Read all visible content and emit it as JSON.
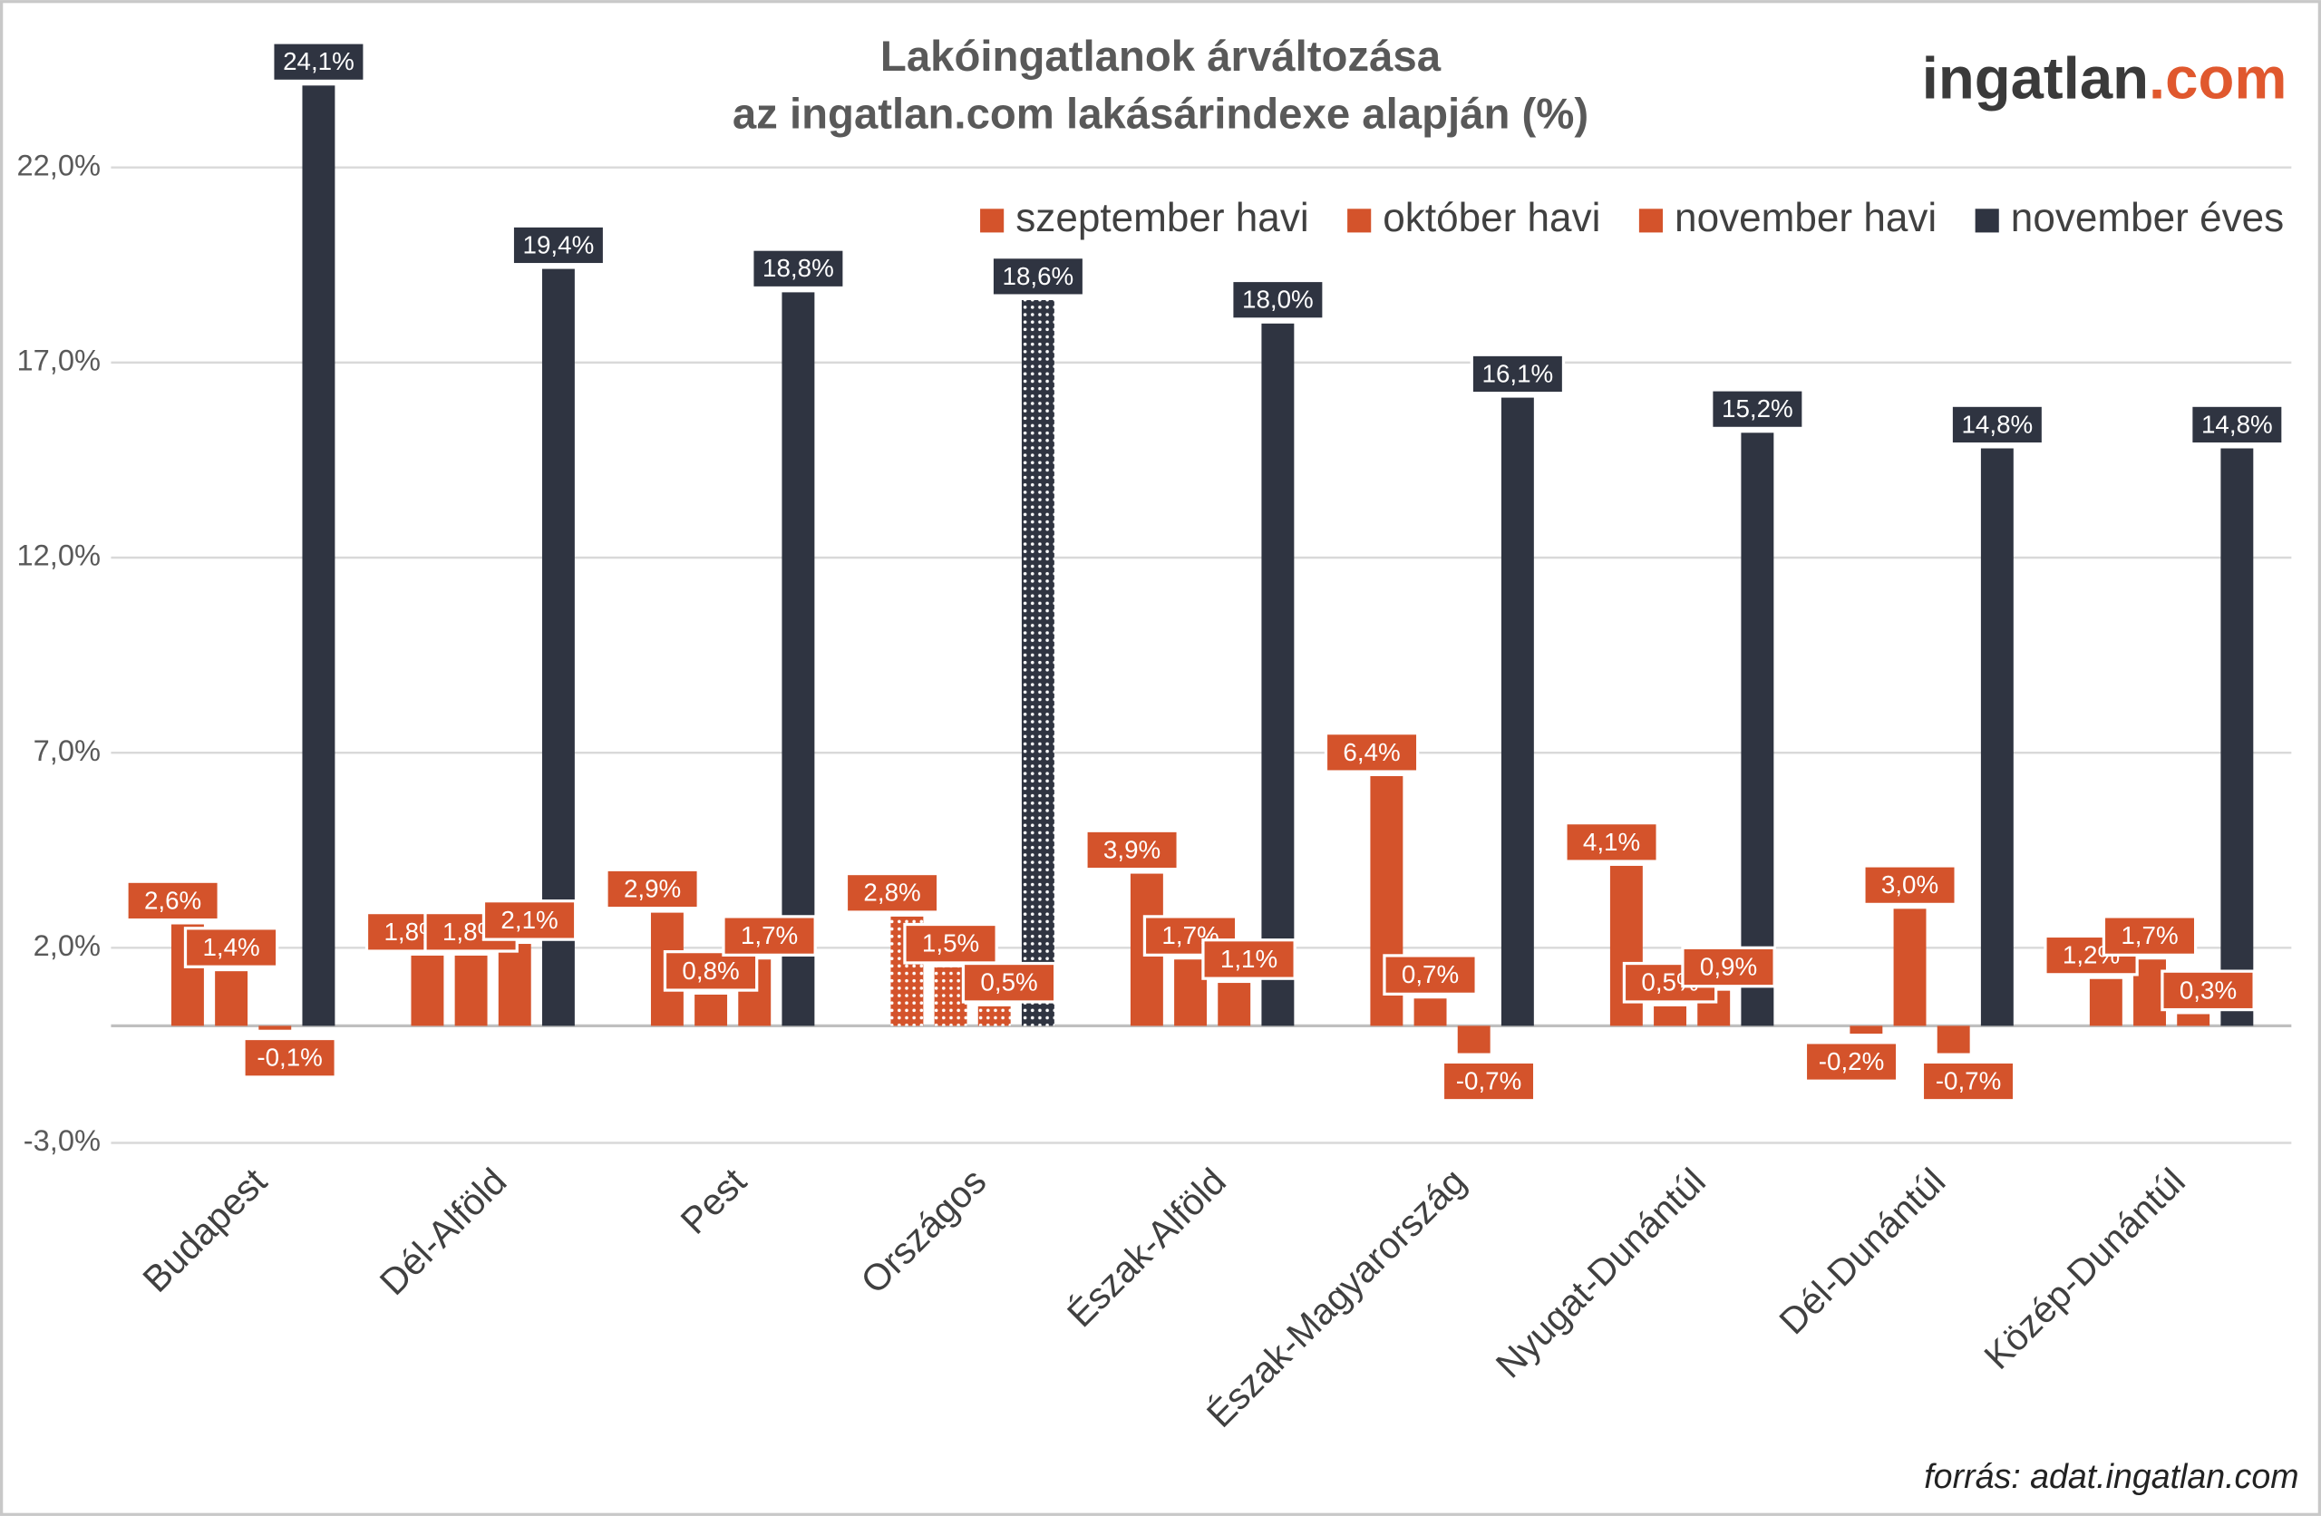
{
  "chart_data": {
    "type": "bar",
    "title": "Lakóingatlanok árváltozása",
    "subtitle": "az ingatlan.com lakásárindexe alapján (%)",
    "logo": {
      "text": "ingatlan",
      "accent": ".com"
    },
    "source": "forrás: adat.ingatlan.com",
    "categories": [
      "Budapest",
      "Dél-Alföld",
      "Pest",
      "Országos",
      "Észak-Alföld",
      "Észak-Magyarország",
      "Nyugat-Dunántúl",
      "Dél-Dunántúl",
      "Közép-Dunántúl"
    ],
    "pattern_category": "Országos",
    "series": [
      {
        "name": "szeptember havi",
        "color": "#d4532b",
        "values": [
          2.6,
          1.8,
          2.9,
          2.8,
          3.9,
          6.4,
          4.1,
          -0.2,
          1.2
        ],
        "value_labels": [
          "2,6%",
          "1,8%",
          "2,9%",
          "2,8%",
          "3,9%",
          "6,4%",
          "4,1%",
          "-0,2%",
          "1,2%"
        ]
      },
      {
        "name": "október havi",
        "color": "#d4532b",
        "values": [
          1.4,
          1.8,
          0.8,
          1.5,
          1.7,
          0.7,
          0.5,
          3.0,
          1.7
        ],
        "value_labels": [
          "1,4%",
          "1,8%",
          "0,8%",
          "1,5%",
          "1,7%",
          "0,7%",
          "0,5%",
          "3,0%",
          "1,7%"
        ]
      },
      {
        "name": "november havi",
        "color": "#d4532b",
        "values": [
          -0.1,
          2.1,
          1.7,
          0.5,
          1.1,
          -0.7,
          0.9,
          -0.7,
          0.3
        ],
        "value_labels": [
          "-0,1%",
          "2,1%",
          "1,7%",
          "0,5%",
          "1,1%",
          "-0,7%",
          "0,9%",
          "-0,7%",
          "0,3%"
        ]
      },
      {
        "name": "november éves",
        "color": "#2f3441",
        "values": [
          24.1,
          19.4,
          18.8,
          18.6,
          18.0,
          16.1,
          15.2,
          14.8,
          14.8
        ],
        "value_labels": [
          "24,1%",
          "19,4%",
          "18,8%",
          "18,6%",
          "18,0%",
          "16,1%",
          "15,2%",
          "14,8%",
          "14,8%"
        ]
      }
    ],
    "ylim": [
      -3,
      25
    ],
    "yticks": [
      {
        "value": -3,
        "label": "-3,0%"
      },
      {
        "value": 2,
        "label": "2,0%"
      },
      {
        "value": 7,
        "label": "7,0%"
      },
      {
        "value": 12,
        "label": "12,0%"
      },
      {
        "value": 17,
        "label": "17,0%"
      },
      {
        "value": 22,
        "label": "22,0%"
      }
    ],
    "grid": true,
    "legend": "top-right"
  }
}
